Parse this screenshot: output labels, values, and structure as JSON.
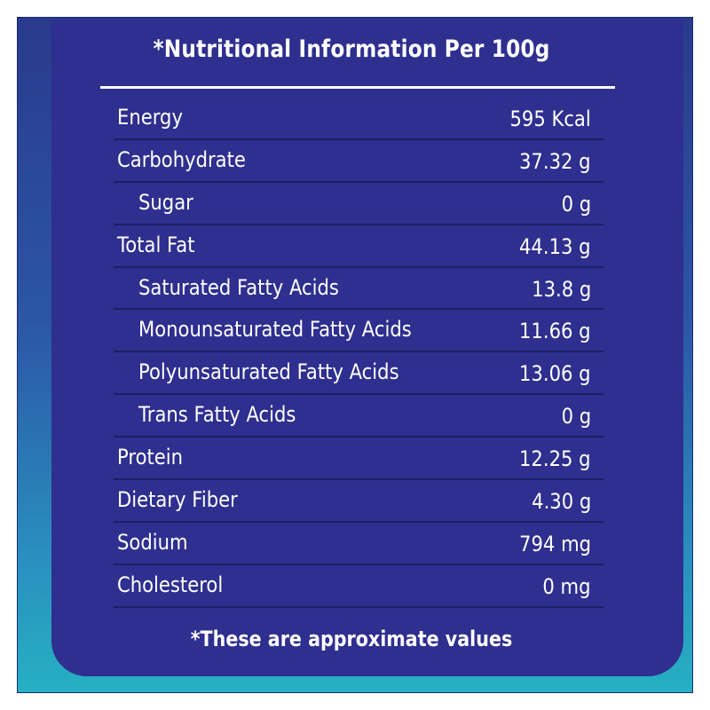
{
  "title": "*Nutritional Information Per 100g",
  "footnote": "*These are approximate values",
  "colors": {
    "panel": "#2e2f8f",
    "background_top": "#2a3a8c",
    "background_bottom": "#26b0c2",
    "text": "#ffffff",
    "divider": "#1e1f62"
  },
  "rows": [
    {
      "label": "Energy",
      "value": "595 Kcal",
      "indent": false
    },
    {
      "label": "Carbohydrate",
      "value": "37.32 g",
      "indent": false
    },
    {
      "label": "Sugar",
      "value": "0 g",
      "indent": true
    },
    {
      "label": "Total Fat",
      "value": "44.13 g",
      "indent": false
    },
    {
      "label": "Saturated Fatty Acids",
      "value": "13.8 g",
      "indent": true
    },
    {
      "label": "Monounsaturated Fatty Acids",
      "value": "11.66 g",
      "indent": true
    },
    {
      "label": "Polyunsaturated Fatty Acids",
      "value": "13.06 g",
      "indent": true
    },
    {
      "label": "Trans Fatty Acids",
      "value": "0 g",
      "indent": true
    },
    {
      "label": "Protein",
      "value": "12.25 g",
      "indent": false
    },
    {
      "label": "Dietary Fiber",
      "value": "4.30 g",
      "indent": false
    },
    {
      "label": "Sodium",
      "value": "794 mg",
      "indent": false
    },
    {
      "label": "Cholesterol",
      "value": "0 mg",
      "indent": false
    }
  ]
}
